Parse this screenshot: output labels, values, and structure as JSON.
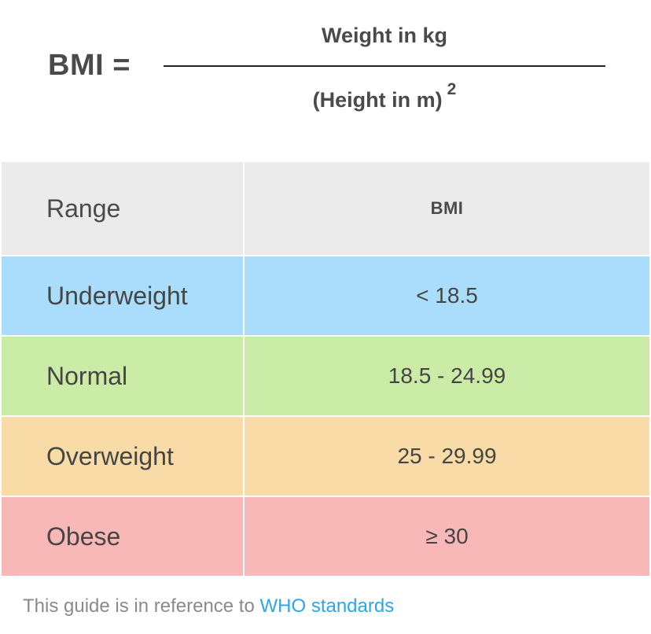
{
  "formula": {
    "lhs": "BMI =",
    "numerator": "Weight in kg",
    "denominator": "(Height in m)",
    "exponent": "2"
  },
  "table": {
    "headers": {
      "range": "Range",
      "bmi": "BMI"
    },
    "rows": [
      {
        "range": "Underweight",
        "bmi": "< 18.5",
        "color": "#aaddfb"
      },
      {
        "range": "Normal",
        "bmi": "18.5 - 24.99",
        "color": "#cbeca6"
      },
      {
        "range": "Overweight",
        "bmi": "25 - 29.99",
        "color": "#f8dba6"
      },
      {
        "range": "Obese",
        "bmi": "≥ 30",
        "color": "#f8b8b7"
      }
    ]
  },
  "footer": {
    "text": "This guide is in reference to ",
    "link_label": "WHO standards",
    "link_color": "#2aa7e8"
  }
}
